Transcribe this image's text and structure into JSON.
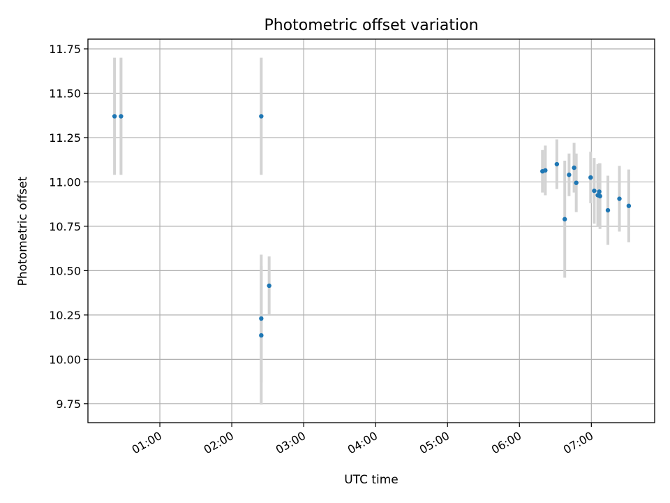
{
  "chart_data": {
    "type": "scatter",
    "title": "Photometric offset variation",
    "xlabel": "UTC time",
    "ylabel": "Photometric offset",
    "x_unit": "hours (UTC)",
    "xlim": [
      0.0,
      7.88
    ],
    "ylim": [
      9.643,
      11.805
    ],
    "x_ticks": [
      {
        "value": 1,
        "label": "01:00"
      },
      {
        "value": 2,
        "label": "02:00"
      },
      {
        "value": 3,
        "label": "03:00"
      },
      {
        "value": 4,
        "label": "04:00"
      },
      {
        "value": 5,
        "label": "05:00"
      },
      {
        "value": 6,
        "label": "06:00"
      },
      {
        "value": 7,
        "label": "07:00"
      }
    ],
    "y_ticks": [
      {
        "value": 9.75,
        "label": "9.75"
      },
      {
        "value": 10.0,
        "label": "10.00"
      },
      {
        "value": 10.25,
        "label": "10.25"
      },
      {
        "value": 10.5,
        "label": "10.50"
      },
      {
        "value": 10.75,
        "label": "10.75"
      },
      {
        "value": 11.0,
        "label": "11.00"
      },
      {
        "value": 11.25,
        "label": "11.25"
      },
      {
        "value": 11.5,
        "label": "11.50"
      },
      {
        "value": 11.75,
        "label": "11.75"
      }
    ],
    "grid": true,
    "colors": {
      "point": "#1f77b4",
      "errorbar": "#d3d3d3"
    },
    "points": [
      {
        "x": 0.37,
        "y": 11.37,
        "err": 0.33
      },
      {
        "x": 0.46,
        "y": 11.37,
        "err": 0.33
      },
      {
        "x": 2.41,
        "y": 11.37,
        "err": 0.33
      },
      {
        "x": 2.41,
        "y": 10.23,
        "err": 0.36
      },
      {
        "x": 2.41,
        "y": 10.135,
        "err": 0.39
      },
      {
        "x": 2.52,
        "y": 10.415,
        "err": 0.165
      },
      {
        "x": 6.32,
        "y": 11.06,
        "err": 0.12
      },
      {
        "x": 6.36,
        "y": 11.065,
        "err": 0.14
      },
      {
        "x": 6.52,
        "y": 11.1,
        "err": 0.14
      },
      {
        "x": 6.63,
        "y": 10.79,
        "err": 0.33
      },
      {
        "x": 6.69,
        "y": 11.04,
        "err": 0.12
      },
      {
        "x": 6.76,
        "y": 11.08,
        "err": 0.14
      },
      {
        "x": 6.79,
        "y": 10.995,
        "err": 0.165
      },
      {
        "x": 6.99,
        "y": 11.025,
        "err": 0.145
      },
      {
        "x": 7.04,
        "y": 10.95,
        "err": 0.185
      },
      {
        "x": 7.09,
        "y": 10.925,
        "err": 0.175
      },
      {
        "x": 7.11,
        "y": 10.945,
        "err": 0.16
      },
      {
        "x": 7.12,
        "y": 10.92,
        "err": 0.185
      },
      {
        "x": 7.23,
        "y": 10.84,
        "err": 0.195
      },
      {
        "x": 7.39,
        "y": 10.905,
        "err": 0.185
      },
      {
        "x": 7.52,
        "y": 10.865,
        "err": 0.205
      }
    ]
  }
}
